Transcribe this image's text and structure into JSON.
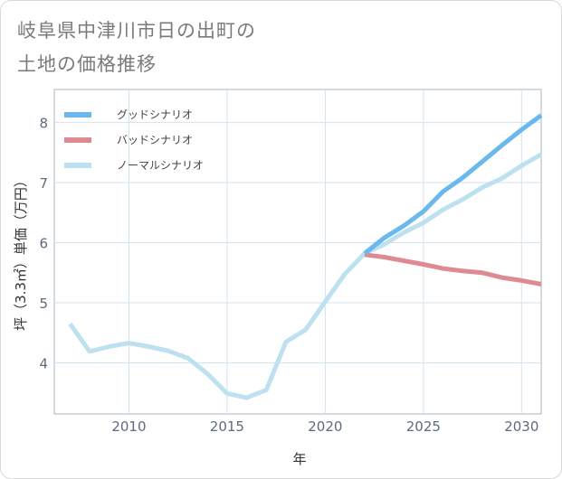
{
  "title_lines": [
    "岐阜県中津川市日の出町の",
    "土地の価格推移"
  ],
  "chart_data": {
    "type": "line",
    "title": "岐阜県中津川市日の出町の土地の価格推移",
    "xlabel": "年",
    "ylabel": "坪（3.3㎡）単価（万円）",
    "xlim": [
      2006.2,
      2031
    ],
    "ylim": [
      3.15,
      8.55
    ],
    "xticks": [
      2010,
      2015,
      2020,
      2025,
      2030
    ],
    "yticks": [
      4,
      5,
      6,
      7,
      8
    ],
    "grid": true,
    "legend_position": "top-left",
    "series": [
      {
        "name": "グッドシナリオ",
        "color": "#6bb8ec",
        "points": [
          [
            2022,
            5.82
          ],
          [
            2023,
            6.08
          ],
          [
            2024,
            6.28
          ],
          [
            2025,
            6.52
          ],
          [
            2026,
            6.85
          ],
          [
            2027,
            7.08
          ],
          [
            2028,
            7.35
          ],
          [
            2029,
            7.62
          ],
          [
            2030,
            7.88
          ],
          [
            2031,
            8.12
          ]
        ]
      },
      {
        "name": "バッドシナリオ",
        "color": "#df8a93",
        "points": [
          [
            2022,
            5.8
          ],
          [
            2023,
            5.76
          ],
          [
            2024,
            5.7
          ],
          [
            2025,
            5.64
          ],
          [
            2026,
            5.57
          ],
          [
            2027,
            5.53
          ],
          [
            2028,
            5.5
          ],
          [
            2029,
            5.42
          ],
          [
            2030,
            5.37
          ],
          [
            2031,
            5.31
          ]
        ]
      },
      {
        "name": "ノーマルシナリオ",
        "color": "#bde1f0",
        "points": [
          [
            2007,
            4.65
          ],
          [
            2008,
            4.19
          ],
          [
            2009,
            4.27
          ],
          [
            2010,
            4.33
          ],
          [
            2011,
            4.27
          ],
          [
            2012,
            4.2
          ],
          [
            2013,
            4.08
          ],
          [
            2014,
            3.82
          ],
          [
            2015,
            3.49
          ],
          [
            2016,
            3.42
          ],
          [
            2017,
            3.55
          ],
          [
            2018,
            4.35
          ],
          [
            2019,
            4.55
          ],
          [
            2020,
            5.02
          ],
          [
            2021,
            5.48
          ],
          [
            2022,
            5.82
          ],
          [
            2023,
            5.97
          ],
          [
            2024,
            6.17
          ],
          [
            2025,
            6.33
          ],
          [
            2026,
            6.55
          ],
          [
            2027,
            6.72
          ],
          [
            2028,
            6.92
          ],
          [
            2029,
            7.07
          ],
          [
            2030,
            7.28
          ],
          [
            2031,
            7.47
          ]
        ]
      }
    ]
  }
}
